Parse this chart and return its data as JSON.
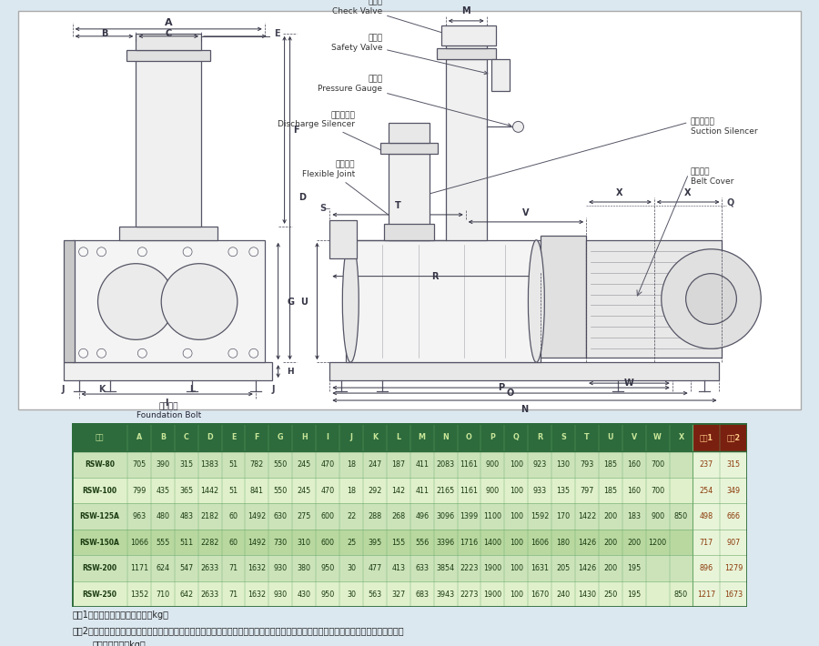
{
  "bg_color": "#dce8f0",
  "white_area_color": "#ffffff",
  "table_header_bg": "#2d6b3c",
  "table_header_fg": "#c8e69a",
  "table_row_colors": [
    "#d4e8c2",
    "#e4f2d0"
  ],
  "table_last2_header_bg": "#8b3a1a",
  "table_last2_row_bg": [
    "#e8f4d8",
    "#f0f8e2"
  ],
  "table_border_color": "#2d6b3c",
  "table_grid_color": "#6aaa6a",
  "table_text_color": "#1a3a10",
  "table_last2_text_color": "#8b4513",
  "note_text_color": "#222222",
  "dim_line_color": "#444455",
  "body_line_color": "#555566",
  "table_headers": [
    "机型",
    "A",
    "B",
    "C",
    "D",
    "E",
    "F",
    "G",
    "H",
    "I",
    "J",
    "K",
    "L",
    "M",
    "N",
    "O",
    "P",
    "Q",
    "R",
    "S",
    "T",
    "U",
    "V",
    "W",
    "X",
    "重量1",
    "重量2"
  ],
  "table_data": [
    [
      "RSW-80",
      "705",
      "390",
      "315",
      "1383",
      "51",
      "782",
      "550",
      "245",
      "470",
      "18",
      "247",
      "187",
      "411",
      "2083",
      "1161",
      "900",
      "100",
      "923",
      "130",
      "793",
      "185",
      "160",
      "700",
      "",
      "237",
      "315"
    ],
    [
      "RSW-100",
      "799",
      "435",
      "365",
      "1442",
      "51",
      "841",
      "550",
      "245",
      "470",
      "18",
      "292",
      "142",
      "411",
      "2165",
      "1161",
      "900",
      "100",
      "933",
      "135",
      "797",
      "185",
      "160",
      "700",
      "",
      "254",
      "349"
    ],
    [
      "RSW-125A",
      "963",
      "480",
      "483",
      "2182",
      "60",
      "1492",
      "630",
      "275",
      "600",
      "22",
      "288",
      "268",
      "496",
      "3096",
      "1399",
      "1100",
      "100",
      "1592",
      "170",
      "1422",
      "200",
      "183",
      "900",
      "850",
      "498",
      "666"
    ],
    [
      "RSW-150A",
      "1066",
      "555",
      "511",
      "2282",
      "60",
      "1492",
      "730",
      "310",
      "600",
      "25",
      "395",
      "155",
      "556",
      "3396",
      "1716",
      "1400",
      "100",
      "1606",
      "180",
      "1426",
      "200",
      "200",
      "1200",
      "",
      "717",
      "907"
    ],
    [
      "RSW-200",
      "1171",
      "624",
      "547",
      "2633",
      "71",
      "1632",
      "930",
      "380",
      "950",
      "30",
      "477",
      "413",
      "633",
      "3854",
      "2223",
      "1900",
      "100",
      "1631",
      "205",
      "1426",
      "200",
      "195",
      "",
      "",
      "896",
      "1279"
    ],
    [
      "RSW-250",
      "1352",
      "710",
      "642",
      "2633",
      "71",
      "1632",
      "930",
      "430",
      "950",
      "30",
      "563",
      "327",
      "683",
      "3943",
      "2273",
      "1900",
      "100",
      "1670",
      "240",
      "1430",
      "250",
      "195",
      "",
      "850",
      "1217",
      "1673"
    ]
  ],
  "note1": "重量1：框内重量為主機重量。（kg）",
  "note2": "重量2：框内重量為主機及所有配件之總重量，配件含入口消音器、底座、出口短管、安全阀、逆止鄀、出口消音器、皮帶護蓋、防震接頭等，不含馬達。（kg）",
  "note2b": "、不含馬達。（kg）",
  "label_check_valve": "逃止鄀\nCheck Valve",
  "label_safety_valve": "安全鄀\nSafety Valve",
  "label_pressure_gauge": "壓力表\nPressure Gauge",
  "label_discharge_silencer": "出口消音器\nDischarge Silencer",
  "label_flexible_joint": "防震接頭\nFlexible Joint",
  "label_suction_silencer": "入口消音器\nSuction Silencer",
  "label_belt_cover": "皮帶護蓋\nBelt Cover",
  "label_foundation_bolt": "基礎螺栓\nFoundation Bolt"
}
